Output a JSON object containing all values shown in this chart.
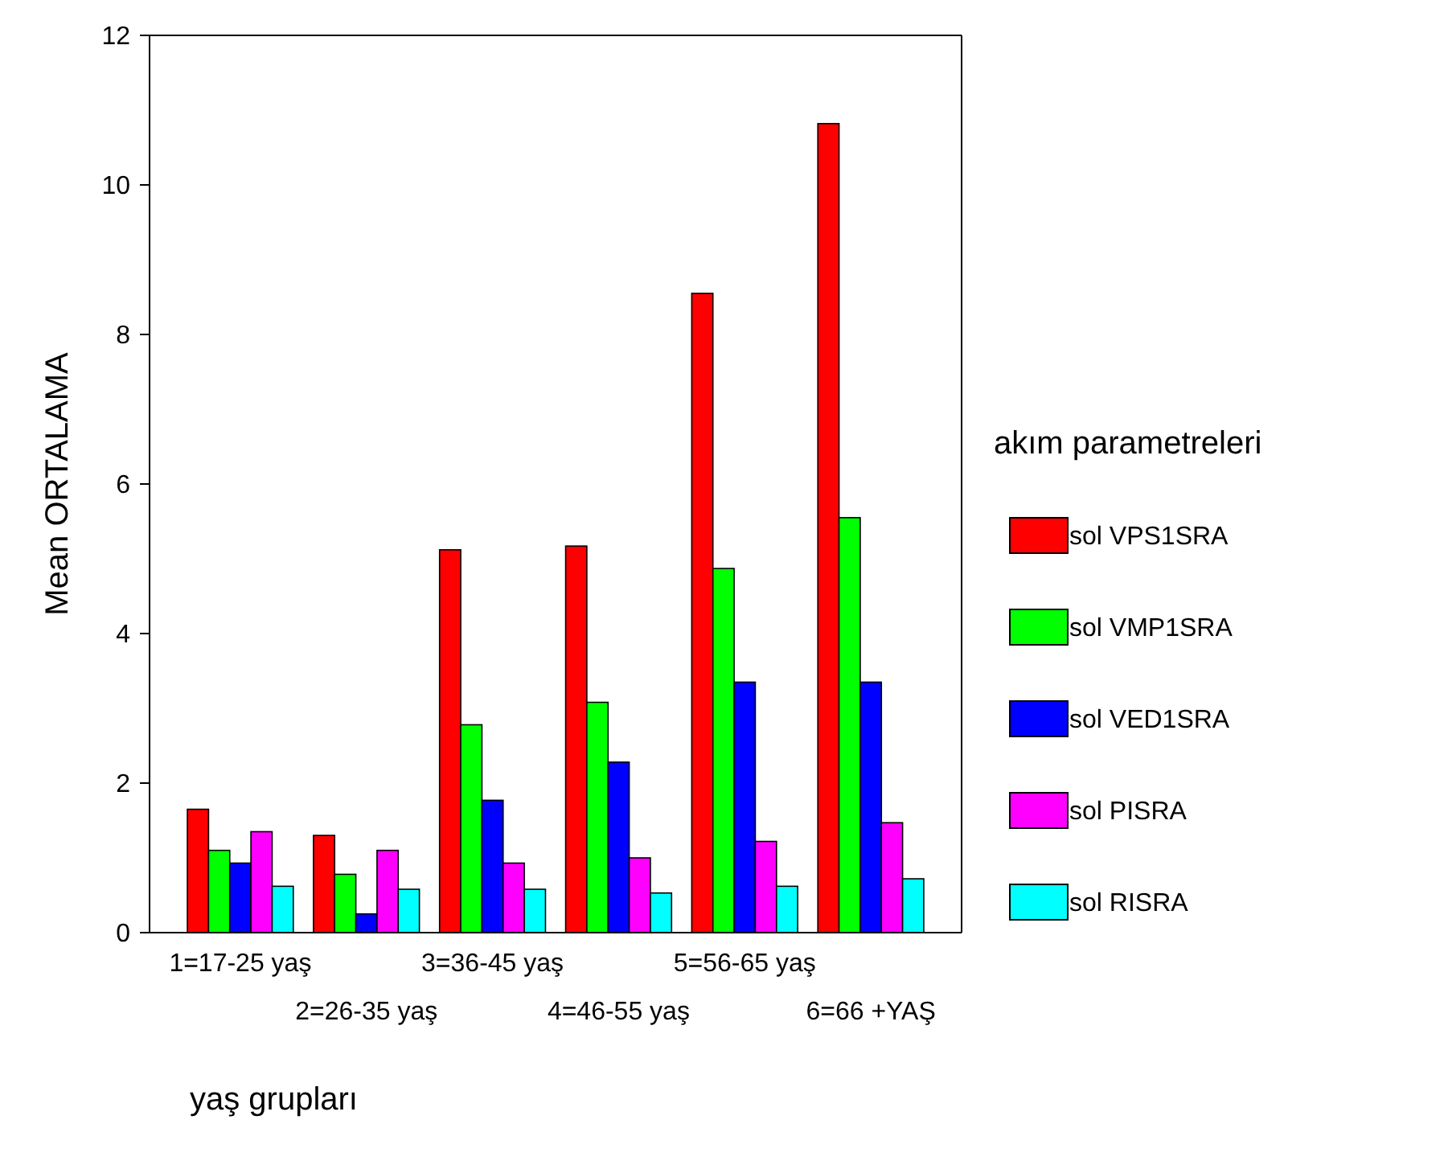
{
  "chart_data": {
    "type": "bar",
    "xlabel": "yaş grupları",
    "ylabel": "Mean ORTALAMA",
    "legend_title": "akım parametreleri",
    "legend": "right",
    "categories": [
      "1=17-25 yaş",
      "2=26-35 yaş",
      "3=36-45 yaş",
      "4=46-55 yaş",
      "5=56-65 yaş",
      "6=66 +YAŞ"
    ],
    "ylim": [
      0,
      12
    ],
    "yticks": [
      0,
      2,
      4,
      6,
      8,
      10,
      12
    ],
    "series": [
      {
        "name": "sol VPS1SRA",
        "color": "#ff0000",
        "values": [
          1.65,
          1.3,
          5.12,
          5.17,
          8.55,
          10.82
        ]
      },
      {
        "name": "sol VMP1SRA",
        "color": "#00ff00",
        "values": [
          1.1,
          0.78,
          2.78,
          3.08,
          4.87,
          5.55
        ]
      },
      {
        "name": "sol VED1SRA",
        "color": "#0000ff",
        "values": [
          0.93,
          0.25,
          1.77,
          2.28,
          3.35,
          3.35
        ]
      },
      {
        "name": "sol PISRA",
        "color": "#ff00ff",
        "values": [
          1.35,
          1.1,
          0.93,
          1.0,
          1.22,
          1.47
        ]
      },
      {
        "name": "sol RISRA",
        "color": "#00ffff",
        "values": [
          0.62,
          0.58,
          0.58,
          0.53,
          0.62,
          0.72
        ]
      }
    ]
  }
}
